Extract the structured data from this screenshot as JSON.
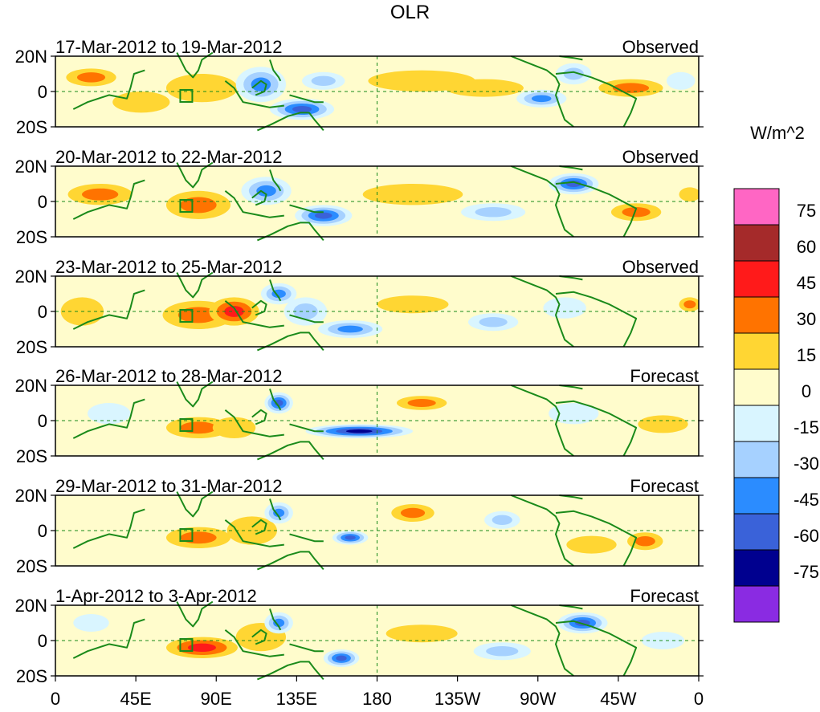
{
  "title": "OLR",
  "chart_data": {
    "type": "heatmap",
    "title": "OLR",
    "variable": "OLR",
    "units": "W/m^2",
    "x_ticks": [
      "0",
      "45E",
      "90E",
      "135E",
      "180",
      "135W",
      "90W",
      "45W",
      "0"
    ],
    "x_range_deg": [
      0,
      360
    ],
    "y_ticks": [
      "20N",
      "0",
      "20S"
    ],
    "y_range_deg": [
      -20,
      20
    ],
    "panels": [
      {
        "dates": "17-Mar-2012 to 19-Mar-2012",
        "kind": "Observed"
      },
      {
        "dates": "20-Mar-2012 to 22-Mar-2012",
        "kind": "Observed"
      },
      {
        "dates": "23-Mar-2012 to 25-Mar-2012",
        "kind": "Observed"
      },
      {
        "dates": "26-Mar-2012 to 28-Mar-2012",
        "kind": "Forecast"
      },
      {
        "dates": "29-Mar-2012 to 31-Mar-2012",
        "kind": "Forecast"
      },
      {
        "dates": "1-Apr-2012 to 3-Apr-2012",
        "kind": "Forecast"
      }
    ],
    "colorbar": {
      "label": "W/m^2",
      "levels": [
        75,
        60,
        45,
        30,
        15,
        0,
        -15,
        -30,
        -45,
        -60,
        -75
      ],
      "colors": [
        "#ff66c4",
        "#a52a2a",
        "#ff1a1a",
        "#ff7300",
        "#ffd633",
        "#fffccc",
        "#d9f5ff",
        "#a6d1ff",
        "#2b8cff",
        "#3a62d9",
        "#00008f",
        "#8a2be2"
      ]
    }
  }
}
